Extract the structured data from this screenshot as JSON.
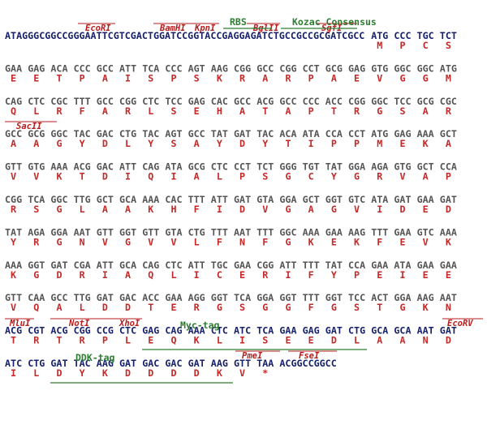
{
  "rows": [
    {
      "prefix": "ATAGGGCGGCCGGGAATTCGTCGACTGGATCCGGTACCGAGGAGATCTGCCGCCGCGATCGCC",
      "codons": [
        "ATG",
        "CCC",
        "TGC",
        "TCT"
      ],
      "aminoacids": [
        "M",
        "P",
        "C",
        "S"
      ]
    },
    {
      "codons": [
        "GAA",
        "GAG",
        "ACA",
        "CCC",
        "GCC",
        "ATT",
        "TCA",
        "CCC",
        "AGT",
        "AAG",
        "CGG",
        "GCC",
        "CGG",
        "CCT",
        "GCG",
        "GAG",
        "GTG",
        "GGC",
        "GGC",
        "ATG"
      ],
      "aminoacids": [
        "E",
        "E",
        "T",
        "P",
        "A",
        "I",
        "S",
        "P",
        "S",
        "K",
        "R",
        "A",
        "R",
        "P",
        "A",
        "E",
        "V",
        "G",
        "G",
        "M"
      ]
    },
    {
      "codons": [
        "CAG",
        "CTC",
        "CGC",
        "TTT",
        "GCC",
        "CGG",
        "CTC",
        "TCC",
        "GAG",
        "CAC",
        "GCC",
        "ACG",
        "GCC",
        "CCC",
        "ACC",
        "CGG",
        "GGC",
        "TCC",
        "GCG",
        "CGC"
      ],
      "aminoacids": [
        "Q",
        "L",
        "R",
        "F",
        "A",
        "R",
        "L",
        "S",
        "E",
        "H",
        "A",
        "T",
        "A",
        "P",
        "T",
        "R",
        "G",
        "S",
        "A",
        "R"
      ]
    },
    {
      "codons": [
        "GCC",
        "GCG",
        "GGC",
        "TAC",
        "GAC",
        "CTG",
        "TAC",
        "AGT",
        "GCC",
        "TAT",
        "GAT",
        "TAC",
        "ACA",
        "ATA",
        "CCA",
        "CCT",
        "ATG",
        "GAG",
        "AAA",
        "GCT"
      ],
      "aminoacids": [
        "A",
        "A",
        "G",
        "Y",
        "D",
        "L",
        "Y",
        "S",
        "A",
        "Y",
        "D",
        "Y",
        "T",
        "I",
        "P",
        "P",
        "M",
        "E",
        "K",
        "A"
      ]
    },
    {
      "codons": [
        "GTT",
        "GTG",
        "AAA",
        "ACG",
        "GAC",
        "ATT",
        "CAG",
        "ATA",
        "GCG",
        "CTC",
        "CCT",
        "TCT",
        "GGG",
        "TGT",
        "TAT",
        "GGA",
        "AGA",
        "GTG",
        "GCT",
        "CCA"
      ],
      "aminoacids": [
        "V",
        "V",
        "K",
        "T",
        "D",
        "I",
        "Q",
        "I",
        "A",
        "L",
        "P",
        "S",
        "G",
        "C",
        "Y",
        "G",
        "R",
        "V",
        "A",
        "P"
      ]
    },
    {
      "codons": [
        "CGG",
        "TCA",
        "GGC",
        "TTG",
        "GCT",
        "GCA",
        "AAA",
        "CAC",
        "TTT",
        "ATT",
        "GAT",
        "GTA",
        "GGA",
        "GCT",
        "GGT",
        "GTC",
        "ATA",
        "GAT",
        "GAA",
        "GAT"
      ],
      "aminoacids": [
        "R",
        "S",
        "G",
        "L",
        "A",
        "A",
        "K",
        "H",
        "F",
        "I",
        "D",
        "V",
        "G",
        "A",
        "G",
        "V",
        "I",
        "D",
        "E",
        "D"
      ]
    },
    {
      "codons": [
        "TAT",
        "AGA",
        "GGA",
        "AAT",
        "GTT",
        "GGT",
        "GTT",
        "GTA",
        "CTG",
        "TTT",
        "AAT",
        "TTT",
        "GGC",
        "AAA",
        "GAA",
        "AAG",
        "TTT",
        "GAA",
        "GTC",
        "AAA"
      ],
      "aminoacids": [
        "Y",
        "R",
        "G",
        "N",
        "V",
        "G",
        "V",
        "V",
        "L",
        "F",
        "N",
        "F",
        "G",
        "K",
        "E",
        "K",
        "F",
        "E",
        "V",
        "K"
      ]
    },
    {
      "codons": [
        "AAA",
        "GGT",
        "GAT",
        "CGA",
        "ATT",
        "GCA",
        "CAG",
        "CTC",
        "ATT",
        "TGC",
        "GAA",
        "CGG",
        "ATT",
        "TTT",
        "TAT",
        "CCA",
        "GAA",
        "ATA",
        "GAA",
        "GAA"
      ],
      "aminoacids": [
        "K",
        "G",
        "D",
        "R",
        "I",
        "A",
        "Q",
        "L",
        "I",
        "C",
        "E",
        "R",
        "I",
        "F",
        "Y",
        "P",
        "E",
        "I",
        "E",
        "E"
      ]
    },
    {
      "codons": [
        "GTT",
        "CAA",
        "GCC",
        "TTG",
        "GAT",
        "GAC",
        "ACC",
        "GAA",
        "AGG",
        "GGT",
        "TCA",
        "GGA",
        "GGT",
        "TTT",
        "GGT",
        "TCC",
        "ACT",
        "GGA",
        "AAG",
        "AAT"
      ],
      "aminoacids": [
        "V",
        "Q",
        "A",
        "L",
        "D",
        "D",
        "T",
        "E",
        "R",
        "G",
        "S",
        "G",
        "G",
        "F",
        "G",
        "S",
        "T",
        "G",
        "K",
        "N"
      ]
    },
    {
      "codons": [
        "ACG",
        "CGT",
        "ACG",
        "CGG",
        "CCG",
        "CTC",
        "GAG",
        "CAG",
        "AAA",
        "CTC",
        "ATC",
        "TCA",
        "GAA",
        "GAG",
        "GAT",
        "CTG",
        "GCA",
        "GCA",
        "AAT",
        "GAT"
      ],
      "aminoacids": [
        "T",
        "R",
        "T",
        "R",
        "P",
        "L",
        "E",
        "Q",
        "K",
        "L",
        "I",
        "S",
        "E",
        "E",
        "D",
        "L",
        "A",
        "A",
        "N",
        "D"
      ]
    },
    {
      "codons": [
        "ATC",
        "CTG",
        "GAT",
        "TAC",
        "AAG",
        "GAT",
        "GAC",
        "GAC",
        "GAT",
        "AAG",
        "GTT",
        "TAA"
      ],
      "aminoacids": [
        "I",
        "L",
        "D",
        "Y",
        "K",
        "D",
        "D",
        "D",
        "D",
        "K",
        "V",
        "*"
      ],
      "suffix": "ACGGCCGGCC"
    }
  ],
  "enzymes": [
    "EcoRI",
    "BamHI",
    "KpnI",
    "BglII",
    "SgfI",
    "SacII",
    "MluI",
    "NotI",
    "XhoI",
    "EcoRV",
    "PmeI",
    "FseI"
  ],
  "tags": [
    "RBS",
    "Kozac Consensus",
    "Myc-tag",
    "DDK-tag"
  ]
}
